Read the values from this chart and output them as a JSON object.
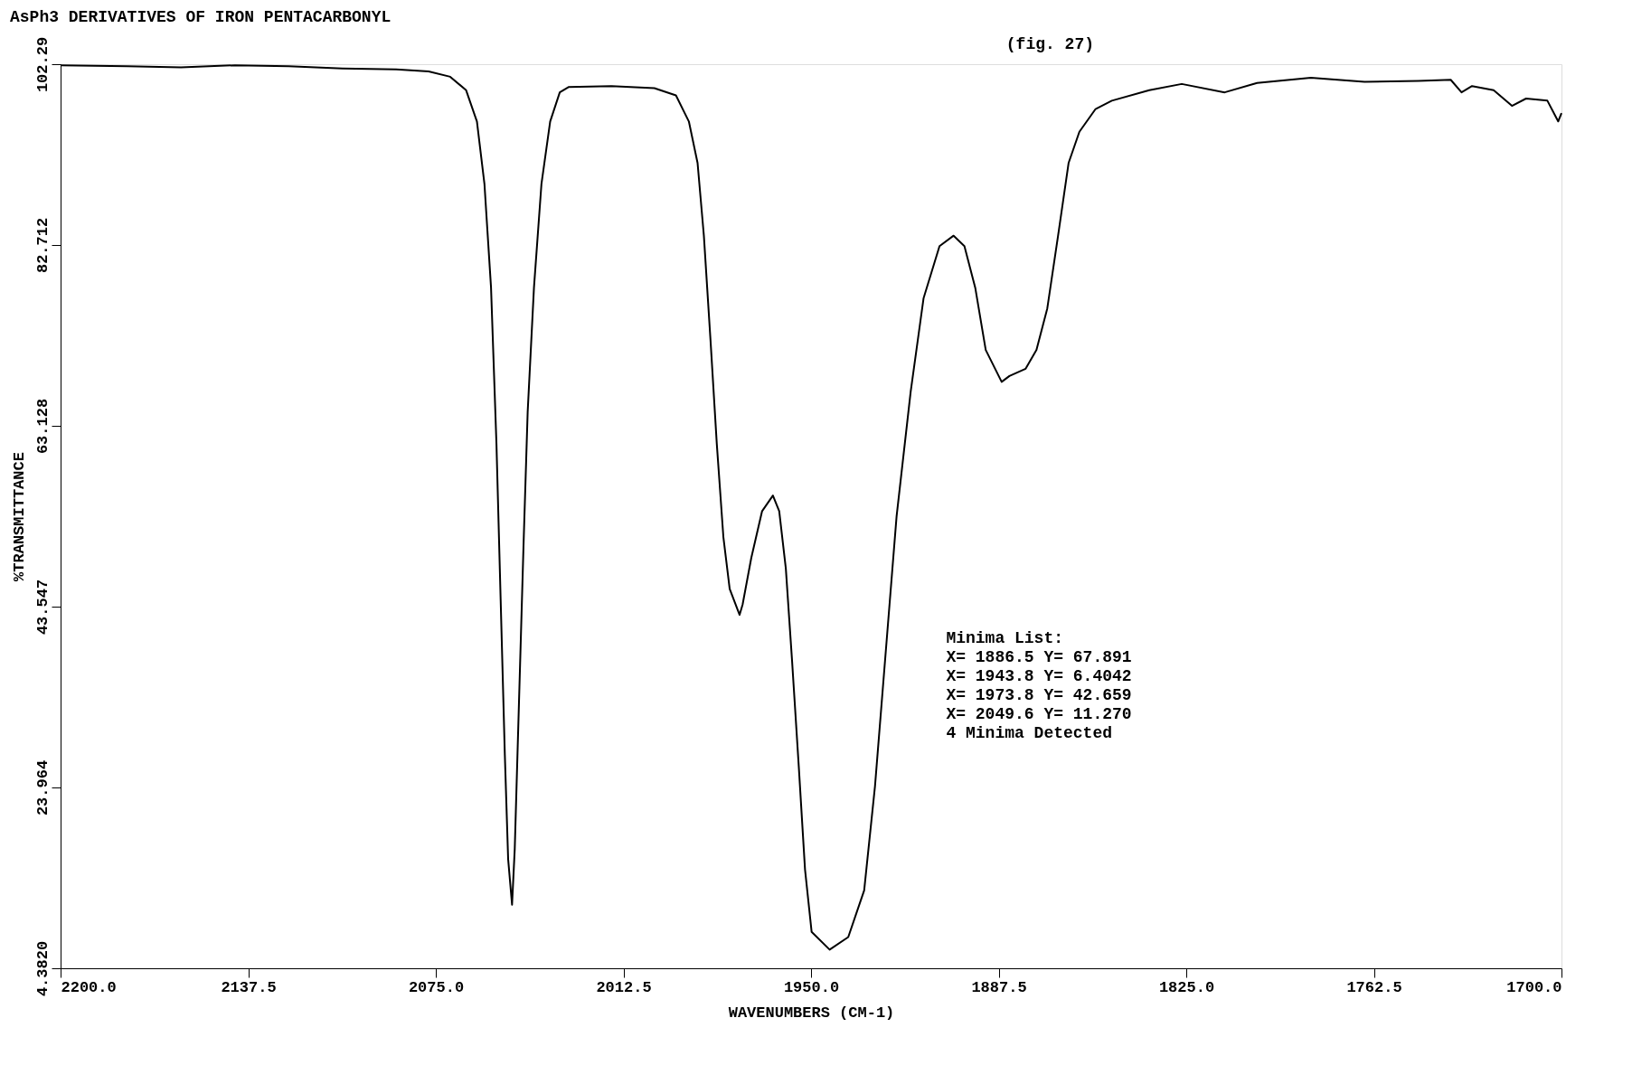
{
  "chart_data": {
    "type": "line",
    "title": "AsPh3 DERIVATIVES OF IRON PENTACARBONYL",
    "xlabel": "WAVENUMBERS (CM-1)",
    "ylabel": "%TRANSMITTANCE",
    "annotations": [
      "(fig. 27)",
      "Minima List:",
      "X= 1886.5 Y= 67.891",
      "X= 1943.8 Y= 6.4042",
      "X= 1973.8 Y= 42.659",
      "X= 2049.6 Y= 11.270",
      "4 Minima Detected"
    ],
    "xlim": [
      2200,
      1700
    ],
    "xticks": [
      {
        "value": 2200,
        "label": "2200.0"
      },
      {
        "value": 2137.5,
        "label": "2137.5"
      },
      {
        "value": 2075,
        "label": "2075.0"
      },
      {
        "value": 2012.5,
        "label": "2012.5"
      },
      {
        "value": 1950,
        "label": "1950.0"
      },
      {
        "value": 1887.5,
        "label": "1887.5"
      },
      {
        "value": 1825,
        "label": "1825.0"
      },
      {
        "value": 1762.5,
        "label": "1762.5"
      },
      {
        "value": 1700,
        "label": "1700.0"
      }
    ],
    "ylim": [
      4.382,
      102.29
    ],
    "yticks": [
      {
        "value": 4.382,
        "label": "4.3820"
      },
      23.964,
      43.547,
      63.128,
      82.712,
      102.29
    ],
    "grid": false,
    "marker": "none",
    "line_style": "solid",
    "series": [
      {
        "color": "#000000",
        "x": [
          2200.0,
          2177.8,
          2159.9,
          2141.9,
          2124.0,
          2106.1,
          2088.2,
          2077.4,
          2070.2,
          2064.9,
          2061.3,
          2058.8,
          2056.6,
          2054.8,
          2053.4,
          2052.0,
          2050.9,
          2049.6,
          2048.7,
          2047.3,
          2045.8,
          2044.4,
          2042.3,
          2039.8,
          2036.9,
          2033.7,
          2030.8,
          2016.5,
          2002.2,
          1995.0,
          1990.7,
          1987.8,
          1985.7,
          1983.5,
          1981.4,
          1979.2,
          1977.1,
          1973.8,
          1972.8,
          1969.9,
          1966.3,
          1962.7,
          1960.6,
          1958.4,
          1956.3,
          1954.1,
          1952.0,
          1949.8,
          1943.8,
          1937.6,
          1932.3,
          1928.7,
          1925.1,
          1921.5,
          1916.8,
          1912.5,
          1907.2,
          1902.5,
          1898.9,
          1895.3,
          1891.8,
          1886.5,
          1883.9,
          1878.5,
          1874.9,
          1871.3,
          1867.7,
          1864.2,
          1860.6,
          1855.2,
          1849.8,
          1837.3,
          1826.5,
          1812.2,
          1801.4,
          1783.5,
          1765.6,
          1747.7,
          1736.9,
          1733.3,
          1729.8,
          1722.6,
          1716.5,
          1711.8,
          1704.7,
          1701.1,
          1700.0
        ],
        "values": [
          102.17,
          102.06,
          101.95,
          102.17,
          102.06,
          101.83,
          101.72,
          101.5,
          100.93,
          99.47,
          96.09,
          89.34,
          78.09,
          61.21,
          44.33,
          27.45,
          16.2,
          11.27,
          17.32,
          33.08,
          49.93,
          64.59,
          78.09,
          89.34,
          96.09,
          99.24,
          99.81,
          99.92,
          99.7,
          98.91,
          96.09,
          91.59,
          83.72,
          72.46,
          61.21,
          51.08,
          45.46,
          42.66,
          43.77,
          48.83,
          53.89,
          55.58,
          53.89,
          47.7,
          37.58,
          26.33,
          15.07,
          8.32,
          6.4,
          7.76,
          12.82,
          24.07,
          38.7,
          53.33,
          66.84,
          76.96,
          82.59,
          83.72,
          82.59,
          78.09,
          71.34,
          67.89,
          68.52,
          69.31,
          71.34,
          75.84,
          83.72,
          91.59,
          94.97,
          97.44,
          98.34,
          99.47,
          100.15,
          99.24,
          100.25,
          100.82,
          100.37,
          100.48,
          100.6,
          99.24,
          99.92,
          99.47,
          97.78,
          98.57,
          98.34,
          96.09,
          96.99
        ]
      }
    ]
  }
}
